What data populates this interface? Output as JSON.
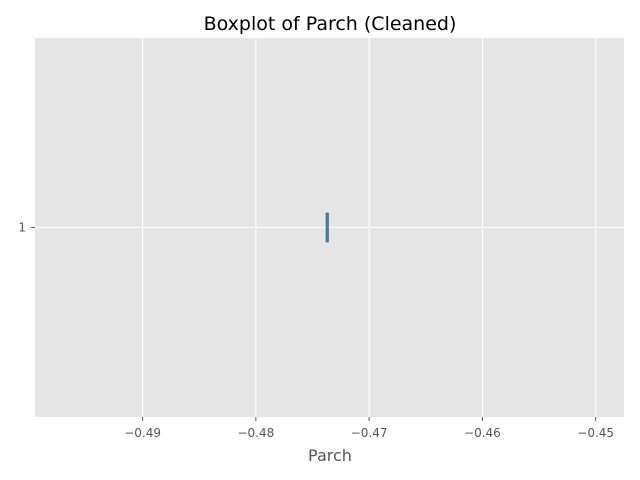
{
  "chart_data": {
    "type": "boxplot",
    "orientation": "horizontal",
    "title": "Boxplot of Parch (Cleaned)",
    "xlabel": "Parch",
    "ylabel": "",
    "xlim": [
      -0.4995,
      -0.4475
    ],
    "ylim": [
      0.5,
      1.5
    ],
    "xticks": [
      -0.49,
      -0.48,
      -0.47,
      -0.46,
      -0.45
    ],
    "xtick_labels": [
      "−0.49",
      "−0.48",
      "−0.47",
      "−0.46",
      "−0.45"
    ],
    "yticks": [
      1
    ],
    "ytick_labels": [
      "1"
    ],
    "grid": true,
    "series": [
      {
        "position": 1,
        "min": -0.4737,
        "q1": -0.4737,
        "median": -0.4737,
        "q3": -0.4737,
        "max": -0.4737
      }
    ],
    "colors": {
      "axes_background": "#e5e5e5",
      "grid": "#ffffff",
      "box": "#348abd",
      "median": "#e24a33",
      "edge": "#3a5a78"
    }
  }
}
